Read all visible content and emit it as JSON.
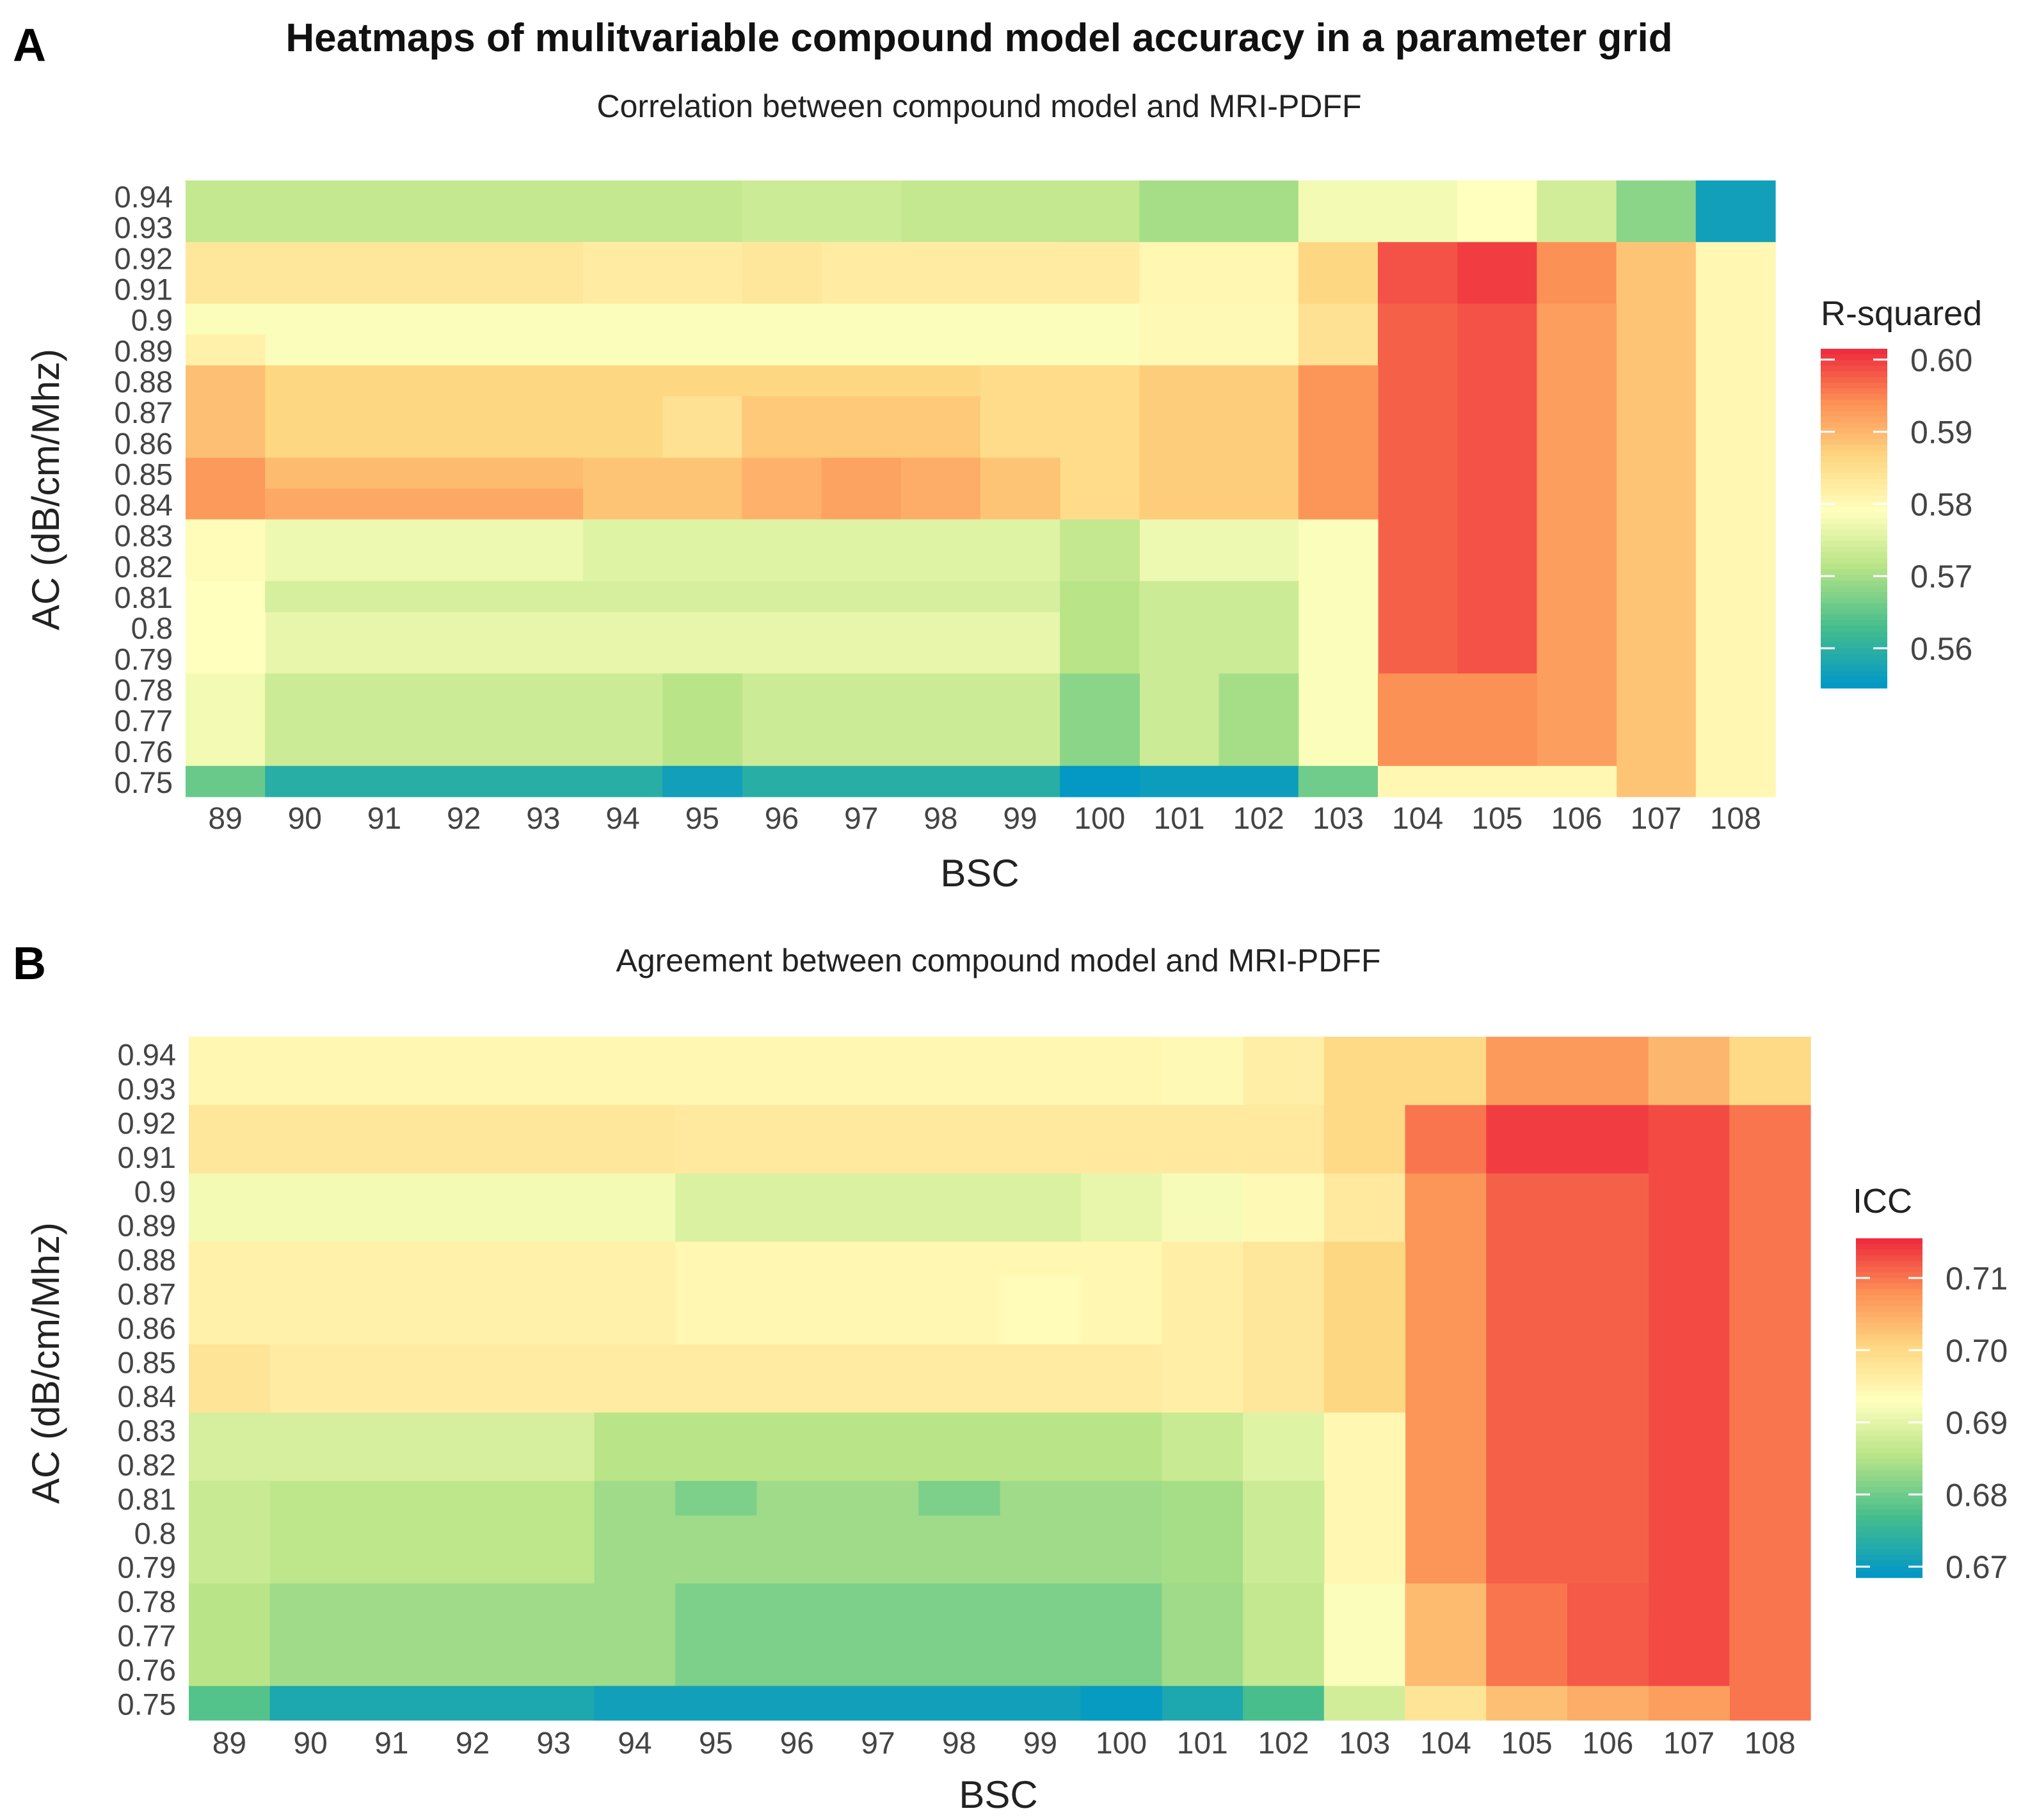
{
  "title": "Heatmaps of mulitvariable compound model accuracy in a parameter grid",
  "panels": {
    "a": "A",
    "b": "B"
  },
  "chart_data": [
    {
      "type": "heatmap",
      "panel": "A",
      "subtitle": "Correlation between compound model and MRI-PDFF",
      "xlabel": "BSC",
      "ylabel": "AC (dB/cm/Mhz)",
      "legend_title": "R-squared",
      "legend_ticks": [
        "0.60",
        "0.59",
        "0.58",
        "0.57",
        "0.56"
      ],
      "legend_tick_values": [
        0.6,
        0.59,
        0.58,
        0.57,
        0.56
      ],
      "color_range": [
        0.5545,
        0.6015
      ],
      "x_ticks": [
        "89",
        "90",
        "91",
        "92",
        "93",
        "94",
        "95",
        "96",
        "97",
        "98",
        "99",
        "100",
        "101",
        "102",
        "103",
        "104",
        "105",
        "106",
        "107",
        "108"
      ],
      "y_ticks": [
        "0.94",
        "0.93",
        "0.92",
        "0.91",
        "0.9",
        "0.89",
        "0.88",
        "0.87",
        "0.86",
        "0.85",
        "0.84",
        "0.83",
        "0.82",
        "0.81",
        "0.8",
        "0.79",
        "0.78",
        "0.77",
        "0.76",
        "0.75"
      ],
      "cells": [
        {
          "x0": 89,
          "x1": 103,
          "y0": 0.93,
          "y1": 0.94,
          "v": 0.5725
        },
        {
          "x0": 96,
          "x1": 98,
          "y0": 0.93,
          "y1": 0.94,
          "v": 0.5735
        },
        {
          "x0": 101,
          "x1": 103,
          "y0": 0.93,
          "y1": 0.94,
          "v": 0.57
        },
        {
          "x0": 103,
          "x1": 106,
          "y0": 0.93,
          "y1": 0.94,
          "v": 0.5775
        },
        {
          "x0": 105,
          "x1": 106,
          "y0": 0.93,
          "y1": 0.94,
          "v": 0.579
        },
        {
          "x0": 106,
          "x1": 107,
          "y0": 0.93,
          "y1": 0.94,
          "v": 0.574
        },
        {
          "x0": 107,
          "x1": 108,
          "y0": 0.93,
          "y1": 0.94,
          "v": 0.568
        },
        {
          "x0": 108,
          "x1": 109,
          "y0": 0.93,
          "y1": 0.94,
          "v": 0.5565
        },
        {
          "x0": 89,
          "x1": 100,
          "y0": 0.91,
          "y1": 0.92,
          "v": 0.5835
        },
        {
          "x0": 94,
          "x1": 101,
          "y0": 0.91,
          "y1": 0.92,
          "v": 0.5825
        },
        {
          "x0": 96,
          "x1": 97,
          "y0": 0.91,
          "y1": 0.92,
          "v": 0.5835
        },
        {
          "x0": 101,
          "x1": 103,
          "y0": 0.91,
          "y1": 0.92,
          "v": 0.5805
        },
        {
          "x0": 103,
          "x1": 104,
          "y0": 0.91,
          "y1": 0.92,
          "v": 0.5865
        },
        {
          "x0": 104,
          "x1": 105,
          "y0": 0.91,
          "y1": 0.92,
          "v": 0.5985
        },
        {
          "x0": 105,
          "x1": 106,
          "y0": 0.91,
          "y1": 0.92,
          "v": 0.6
        },
        {
          "x0": 106,
          "x1": 107,
          "y0": 0.91,
          "y1": 0.92,
          "v": 0.594
        },
        {
          "x0": 107,
          "x1": 108,
          "y0": 0.75,
          "y1": 0.92,
          "v": 0.5885
        },
        {
          "x0": 108,
          "x1": 109,
          "y0": 0.75,
          "y1": 0.92,
          "v": 0.5805
        },
        {
          "x0": 89,
          "x1": 103,
          "y0": 0.89,
          "y1": 0.9,
          "v": 0.5785
        },
        {
          "x0": 89,
          "x1": 90,
          "y0": 0.89,
          "y1": 0.89,
          "v": 0.5815
        },
        {
          "x0": 101,
          "x1": 103,
          "y0": 0.89,
          "y1": 0.9,
          "v": 0.58
        },
        {
          "x0": 103,
          "x1": 104,
          "y0": 0.89,
          "y1": 0.9,
          "v": 0.5845
        },
        {
          "x0": 104,
          "x1": 106,
          "y0": 0.79,
          "y1": 0.9,
          "v": 0.5975
        },
        {
          "x0": 105,
          "x1": 106,
          "y0": 0.79,
          "y1": 0.9,
          "v": 0.5985
        },
        {
          "x0": 106,
          "x1": 107,
          "y0": 0.76,
          "y1": 0.9,
          "v": 0.5925
        },
        {
          "x0": 89,
          "x1": 90,
          "y0": 0.86,
          "y1": 0.88,
          "v": 0.589
        },
        {
          "x0": 90,
          "x1": 103,
          "y0": 0.86,
          "y1": 0.88,
          "v": 0.5865
        },
        {
          "x0": 95,
          "x1": 96,
          "y0": 0.86,
          "y1": 0.87,
          "v": 0.5845
        },
        {
          "x0": 96,
          "x1": 99,
          "y0": 0.86,
          "y1": 0.87,
          "v": 0.588
        },
        {
          "x0": 99,
          "x1": 101,
          "y0": 0.84,
          "y1": 0.88,
          "v": 0.5855
        },
        {
          "x0": 101,
          "x1": 103,
          "y0": 0.84,
          "y1": 0.88,
          "v": 0.5875
        },
        {
          "x0": 103,
          "x1": 104,
          "y0": 0.84,
          "y1": 0.88,
          "v": 0.5935
        },
        {
          "x0": 89,
          "x1": 90,
          "y0": 0.84,
          "y1": 0.85,
          "v": 0.593
        },
        {
          "x0": 90,
          "x1": 94,
          "y0": 0.84,
          "y1": 0.85,
          "v": 0.5895
        },
        {
          "x0": 90,
          "x1": 94,
          "y0": 0.84,
          "y1": 0.84,
          "v": 0.5915
        },
        {
          "x0": 94,
          "x1": 96,
          "y0": 0.84,
          "y1": 0.85,
          "v": 0.5885
        },
        {
          "x0": 96,
          "x1": 97,
          "y0": 0.84,
          "y1": 0.85,
          "v": 0.5905
        },
        {
          "x0": 97,
          "x1": 98,
          "y0": 0.84,
          "y1": 0.85,
          "v": 0.592
        },
        {
          "x0": 98,
          "x1": 99,
          "y0": 0.84,
          "y1": 0.85,
          "v": 0.591
        },
        {
          "x0": 99,
          "x1": 100,
          "y0": 0.84,
          "y1": 0.85,
          "v": 0.5885
        },
        {
          "x0": 89,
          "x1": 103,
          "y0": 0.82,
          "y1": 0.83,
          "v": 0.577
        },
        {
          "x0": 89,
          "x1": 90,
          "y0": 0.82,
          "y1": 0.83,
          "v": 0.5795
        },
        {
          "x0": 94,
          "x1": 101,
          "y0": 0.82,
          "y1": 0.83,
          "v": 0.5755
        },
        {
          "x0": 100,
          "x1": 101,
          "y0": 0.82,
          "y1": 0.83,
          "v": 0.5725
        },
        {
          "x0": 103,
          "x1": 104,
          "y0": 0.76,
          "y1": 0.83,
          "v": 0.5785
        },
        {
          "x0": 89,
          "x1": 103,
          "y0": 0.79,
          "y1": 0.81,
          "v": 0.5765
        },
        {
          "x0": 89,
          "x1": 90,
          "y0": 0.79,
          "y1": 0.81,
          "v": 0.579
        },
        {
          "x0": 90,
          "x1": 103,
          "y0": 0.81,
          "y1": 0.81,
          "v": 0.5745
        },
        {
          "x0": 100,
          "x1": 101,
          "y0": 0.79,
          "y1": 0.81,
          "v": 0.5715
        },
        {
          "x0": 101,
          "x1": 103,
          "y0": 0.79,
          "y1": 0.81,
          "v": 0.5735
        },
        {
          "x0": 89,
          "x1": 90,
          "y0": 0.76,
          "y1": 0.78,
          "v": 0.5775
        },
        {
          "x0": 90,
          "x1": 103,
          "y0": 0.76,
          "y1": 0.78,
          "v": 0.5735
        },
        {
          "x0": 95,
          "x1": 96,
          "y0": 0.76,
          "y1": 0.78,
          "v": 0.5715
        },
        {
          "x0": 100,
          "x1": 101,
          "y0": 0.76,
          "y1": 0.78,
          "v": 0.568
        },
        {
          "x0": 102,
          "x1": 103,
          "y0": 0.76,
          "y1": 0.78,
          "v": 0.57
        },
        {
          "x0": 104,
          "x1": 106,
          "y0": 0.76,
          "y1": 0.78,
          "v": 0.594
        },
        {
          "x0": 89,
          "x1": 90,
          "y0": 0.75,
          "y1": 0.75,
          "v": 0.5655
        },
        {
          "x0": 90,
          "x1": 103,
          "y0": 0.75,
          "y1": 0.75,
          "v": 0.5595
        },
        {
          "x0": 95,
          "x1": 96,
          "y0": 0.75,
          "y1": 0.75,
          "v": 0.5565
        },
        {
          "x0": 100,
          "x1": 101,
          "y0": 0.75,
          "y1": 0.75,
          "v": 0.555
        },
        {
          "x0": 101,
          "x1": 103,
          "y0": 0.75,
          "y1": 0.75,
          "v": 0.556
        },
        {
          "x0": 103,
          "x1": 104,
          "y0": 0.75,
          "y1": 0.75,
          "v": 0.566
        },
        {
          "x0": 104,
          "x1": 107,
          "y0": 0.75,
          "y1": 0.75,
          "v": 0.5805
        }
      ]
    },
    {
      "type": "heatmap",
      "panel": "B",
      "subtitle": "Agreement between compound model and MRI-PDFF",
      "xlabel": "BSC",
      "ylabel": "AC (dB/cm/Mhz)",
      "legend_title": "ICC",
      "legend_ticks": [
        "0.71",
        "0.70",
        "0.69",
        "0.68",
        "0.67"
      ],
      "legend_tick_values": [
        0.71,
        0.7,
        0.69,
        0.68,
        0.67
      ],
      "color_range": [
        0.6685,
        0.7155
      ],
      "x_ticks": [
        "89",
        "90",
        "91",
        "92",
        "93",
        "94",
        "95",
        "96",
        "97",
        "98",
        "99",
        "100",
        "101",
        "102",
        "103",
        "104",
        "105",
        "106",
        "107",
        "108"
      ],
      "y_ticks": [
        "0.94",
        "0.93",
        "0.92",
        "0.91",
        "0.9",
        "0.89",
        "0.88",
        "0.87",
        "0.86",
        "0.85",
        "0.84",
        "0.83",
        "0.82",
        "0.81",
        "0.8",
        "0.79",
        "0.78",
        "0.77",
        "0.76",
        "0.75"
      ],
      "cells": [
        {
          "x0": 89,
          "x1": 103,
          "y0": 0.93,
          "y1": 0.94,
          "v": 0.6945
        },
        {
          "x0": 101,
          "x1": 102,
          "y0": 0.93,
          "y1": 0.94,
          "v": 0.694
        },
        {
          "x0": 102,
          "x1": 103,
          "y0": 0.93,
          "y1": 0.94,
          "v": 0.696
        },
        {
          "x0": 103,
          "x1": 105,
          "y0": 0.93,
          "y1": 0.94,
          "v": 0.7
        },
        {
          "x0": 105,
          "x1": 107,
          "y0": 0.93,
          "y1": 0.94,
          "v": 0.707
        },
        {
          "x0": 107,
          "x1": 108,
          "y0": 0.93,
          "y1": 0.94,
          "v": 0.704
        },
        {
          "x0": 108,
          "x1": 109,
          "y0": 0.93,
          "y1": 0.94,
          "v": 0.7
        },
        {
          "x0": 89,
          "x1": 95,
          "y0": 0.91,
          "y1": 0.92,
          "v": 0.6975
        },
        {
          "x0": 95,
          "x1": 103,
          "y0": 0.91,
          "y1": 0.92,
          "v": 0.697
        },
        {
          "x0": 103,
          "x1": 104,
          "y0": 0.91,
          "y1": 0.92,
          "v": 0.7
        },
        {
          "x0": 104,
          "x1": 105,
          "y0": 0.91,
          "y1": 0.92,
          "v": 0.71
        },
        {
          "x0": 105,
          "x1": 107,
          "y0": 0.91,
          "y1": 0.92,
          "v": 0.714
        },
        {
          "x0": 107,
          "x1": 108,
          "y0": 0.76,
          "y1": 0.92,
          "v": 0.713
        },
        {
          "x0": 108,
          "x1": 109,
          "y0": 0.75,
          "y1": 0.92,
          "v": 0.71
        },
        {
          "x0": 89,
          "x1": 103,
          "y0": 0.89,
          "y1": 0.9,
          "v": 0.6915
        },
        {
          "x0": 95,
          "x1": 100,
          "y0": 0.89,
          "y1": 0.9,
          "v": 0.689
        },
        {
          "x0": 100,
          "x1": 101,
          "y0": 0.89,
          "y1": 0.9,
          "v": 0.6905
        },
        {
          "x0": 101,
          "x1": 102,
          "y0": 0.89,
          "y1": 0.9,
          "v": 0.692
        },
        {
          "x0": 102,
          "x1": 103,
          "y0": 0.89,
          "y1": 0.9,
          "v": 0.694
        },
        {
          "x0": 103,
          "x1": 104,
          "y0": 0.89,
          "y1": 0.9,
          "v": 0.697
        },
        {
          "x0": 104,
          "x1": 105,
          "y0": 0.76,
          "y1": 0.9,
          "v": 0.7075
        },
        {
          "x0": 105,
          "x1": 107,
          "y0": 0.78,
          "y1": 0.9,
          "v": 0.7115
        },
        {
          "x0": 89,
          "x1": 101,
          "y0": 0.86,
          "y1": 0.88,
          "v": 0.6955
        },
        {
          "x0": 95,
          "x1": 101,
          "y0": 0.86,
          "y1": 0.88,
          "v": 0.6945
        },
        {
          "x0": 99,
          "x1": 100,
          "y0": 0.86,
          "y1": 0.87,
          "v": 0.6935
        },
        {
          "x0": 101,
          "x1": 102,
          "y0": 0.84,
          "y1": 0.88,
          "v": 0.696
        },
        {
          "x0": 102,
          "x1": 103,
          "y0": 0.84,
          "y1": 0.88,
          "v": 0.6975
        },
        {
          "x0": 103,
          "x1": 104,
          "y0": 0.84,
          "y1": 0.88,
          "v": 0.7005
        },
        {
          "x0": 89,
          "x1": 90,
          "y0": 0.84,
          "y1": 0.85,
          "v": 0.698
        },
        {
          "x0": 90,
          "x1": 101,
          "y0": 0.84,
          "y1": 0.85,
          "v": 0.6965
        },
        {
          "x0": 89,
          "x1": 103,
          "y0": 0.82,
          "y1": 0.83,
          "v": 0.6885
        },
        {
          "x0": 94,
          "x1": 101,
          "y0": 0.82,
          "y1": 0.83,
          "v": 0.6855
        },
        {
          "x0": 101,
          "x1": 102,
          "y0": 0.82,
          "y1": 0.83,
          "v": 0.687
        },
        {
          "x0": 102,
          "x1": 103,
          "y0": 0.82,
          "y1": 0.83,
          "v": 0.6895
        },
        {
          "x0": 103,
          "x1": 104,
          "y0": 0.79,
          "y1": 0.83,
          "v": 0.6945
        },
        {
          "x0": 89,
          "x1": 103,
          "y0": 0.79,
          "y1": 0.81,
          "v": 0.686
        },
        {
          "x0": 89,
          "x1": 90,
          "y0": 0.79,
          "y1": 0.81,
          "v": 0.687
        },
        {
          "x0": 94,
          "x1": 101,
          "y0": 0.79,
          "y1": 0.81,
          "v": 0.6835
        },
        {
          "x0": 95,
          "x1": 96,
          "y0": 0.81,
          "y1": 0.81,
          "v": 0.681
        },
        {
          "x0": 98,
          "x1": 99,
          "y0": 0.81,
          "y1": 0.81,
          "v": 0.681
        },
        {
          "x0": 101,
          "x1": 102,
          "y0": 0.79,
          "y1": 0.81,
          "v": 0.684
        },
        {
          "x0": 102,
          "x1": 103,
          "y0": 0.79,
          "y1": 0.81,
          "v": 0.6875
        },
        {
          "x0": 89,
          "x1": 90,
          "y0": 0.76,
          "y1": 0.78,
          "v": 0.6855
        },
        {
          "x0": 90,
          "x1": 103,
          "y0": 0.76,
          "y1": 0.78,
          "v": 0.6835
        },
        {
          "x0": 95,
          "x1": 101,
          "y0": 0.76,
          "y1": 0.78,
          "v": 0.681
        },
        {
          "x0": 101,
          "x1": 102,
          "y0": 0.76,
          "y1": 0.78,
          "v": 0.6835
        },
        {
          "x0": 102,
          "x1": 103,
          "y0": 0.76,
          "y1": 0.78,
          "v": 0.6865
        },
        {
          "x0": 103,
          "x1": 104,
          "y0": 0.76,
          "y1": 0.78,
          "v": 0.6925
        },
        {
          "x0": 104,
          "x1": 105,
          "y0": 0.76,
          "y1": 0.78,
          "v": 0.7035
        },
        {
          "x0": 105,
          "x1": 106,
          "y0": 0.76,
          "y1": 0.78,
          "v": 0.71
        },
        {
          "x0": 106,
          "x1": 107,
          "y0": 0.76,
          "y1": 0.78,
          "v": 0.712
        },
        {
          "x0": 89,
          "x1": 90,
          "y0": 0.75,
          "y1": 0.75,
          "v": 0.678
        },
        {
          "x0": 90,
          "x1": 103,
          "y0": 0.75,
          "y1": 0.75,
          "v": 0.672
        },
        {
          "x0": 94,
          "x1": 101,
          "y0": 0.75,
          "y1": 0.75,
          "v": 0.6705
        },
        {
          "x0": 100,
          "x1": 101,
          "y0": 0.75,
          "y1": 0.75,
          "v": 0.6695
        },
        {
          "x0": 102,
          "x1": 103,
          "y0": 0.75,
          "y1": 0.75,
          "v": 0.677
        },
        {
          "x0": 103,
          "x1": 104,
          "y0": 0.75,
          "y1": 0.75,
          "v": 0.688
        },
        {
          "x0": 104,
          "x1": 105,
          "y0": 0.75,
          "y1": 0.75,
          "v": 0.698
        },
        {
          "x0": 105,
          "x1": 106,
          "y0": 0.75,
          "y1": 0.75,
          "v": 0.703
        },
        {
          "x0": 106,
          "x1": 107,
          "y0": 0.75,
          "y1": 0.75,
          "v": 0.705
        },
        {
          "x0": 107,
          "x1": 108,
          "y0": 0.75,
          "y1": 0.75,
          "v": 0.7065
        }
      ]
    }
  ]
}
